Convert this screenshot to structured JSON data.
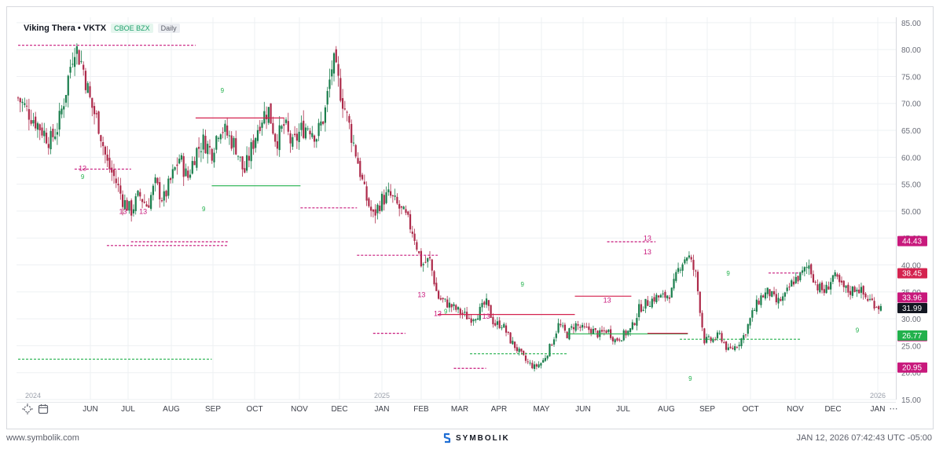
{
  "header": {
    "title": "Viking Thera • VKTX",
    "exchange": "CBOE BZX",
    "interval": "Daily"
  },
  "colors": {
    "up": "#1a7e4c",
    "down": "#ad2a4a",
    "magenta": "#c8197c",
    "green": "#22b14c",
    "red": "#d4234f",
    "grid": "#eef0f3"
  },
  "chart_data": {
    "type": "candlestick",
    "ylim": [
      15,
      86
    ],
    "y_ticks": [
      "85.00",
      "80.00",
      "75.00",
      "70.00",
      "65.00",
      "60.00",
      "55.00",
      "50.00",
      "45.00",
      "40.00",
      "35.00",
      "30.00",
      "25.00",
      "20.00",
      "15.00"
    ],
    "x_labels": [
      "2024",
      "JUN",
      "JUL",
      "AUG",
      "SEP",
      "OCT",
      "NOV",
      "DEC",
      "JAN",
      "2025",
      "FEB",
      "MAR",
      "APR",
      "MAY",
      "JUN",
      "JUL",
      "AUG",
      "SEP",
      "OCT",
      "NOV",
      "DEC",
      "JAN",
      "2026"
    ],
    "close_path": [
      [
        0,
        71
      ],
      [
        2,
        67
      ],
      [
        4,
        63
      ],
      [
        5,
        66
      ],
      [
        6,
        73
      ],
      [
        6.6,
        78
      ],
      [
        7,
        81
      ],
      [
        8,
        77
      ],
      [
        9,
        70
      ],
      [
        10,
        66
      ],
      [
        11,
        59
      ],
      [
        12,
        56
      ],
      [
        13,
        52
      ],
      [
        14,
        50
      ],
      [
        15,
        53
      ],
      [
        16,
        51
      ],
      [
        17,
        55
      ],
      [
        18,
        52
      ],
      [
        19,
        56
      ],
      [
        20,
        60
      ],
      [
        21,
        56
      ],
      [
        22,
        61
      ],
      [
        23,
        63
      ],
      [
        24,
        61
      ],
      [
        25,
        66
      ],
      [
        26,
        64
      ],
      [
        27,
        62
      ],
      [
        28,
        57
      ],
      [
        29,
        62
      ],
      [
        30,
        67
      ],
      [
        31,
        69
      ],
      [
        32,
        63
      ],
      [
        33,
        66
      ],
      [
        34,
        62
      ],
      [
        35,
        65
      ],
      [
        36,
        66
      ],
      [
        37,
        64
      ],
      [
        38,
        68
      ],
      [
        39,
        78
      ],
      [
        40,
        72
      ],
      [
        41,
        66
      ],
      [
        42,
        60
      ],
      [
        43,
        53
      ],
      [
        44,
        49
      ],
      [
        45,
        52
      ],
      [
        46,
        53
      ],
      [
        47,
        51
      ],
      [
        48,
        49
      ],
      [
        49,
        46
      ],
      [
        50,
        40
      ],
      [
        51,
        41
      ],
      [
        52,
        34
      ],
      [
        53,
        33
      ],
      [
        54,
        32
      ],
      [
        55,
        31
      ],
      [
        56,
        30
      ],
      [
        57,
        31
      ],
      [
        58,
        33
      ],
      [
        59,
        29
      ],
      [
        60,
        29
      ],
      [
        61,
        26
      ],
      [
        62,
        24
      ],
      [
        63,
        22
      ],
      [
        64,
        21
      ],
      [
        65,
        22
      ],
      [
        66,
        25
      ],
      [
        67,
        29
      ],
      [
        68,
        27
      ],
      [
        69,
        29
      ],
      [
        70,
        28
      ],
      [
        71,
        28
      ],
      [
        72,
        27
      ],
      [
        73,
        28
      ],
      [
        74,
        26
      ],
      [
        75,
        27
      ],
      [
        76,
        28
      ],
      [
        77,
        32
      ],
      [
        78,
        33
      ],
      [
        79,
        34
      ],
      [
        80,
        34
      ],
      [
        81,
        35
      ],
      [
        82,
        40
      ],
      [
        83,
        42
      ],
      [
        84,
        38
      ],
      [
        85,
        26
      ],
      [
        86,
        26
      ],
      [
        87,
        27
      ],
      [
        88,
        24
      ],
      [
        89,
        25
      ],
      [
        90,
        27
      ],
      [
        91,
        31
      ],
      [
        92,
        34
      ],
      [
        93,
        35
      ],
      [
        94,
        33
      ],
      [
        95,
        34
      ],
      [
        96,
        37
      ],
      [
        97,
        38
      ],
      [
        98,
        40
      ],
      [
        99,
        36
      ],
      [
        100,
        35
      ],
      [
        101,
        38
      ],
      [
        102,
        36
      ],
      [
        103,
        35
      ],
      [
        104,
        36
      ],
      [
        105,
        34
      ],
      [
        106,
        33
      ],
      [
        107,
        32
      ]
    ],
    "levels": [
      {
        "type": "dashed",
        "color": "magenta",
        "y": 80.8,
        "x0": 0,
        "x1": 22
      },
      {
        "type": "dashed",
        "color": "magenta",
        "y": 57.8,
        "x0": 7,
        "x1": 14
      },
      {
        "type": "dashed",
        "color": "magenta",
        "y": 44.3,
        "x0": 14,
        "x1": 26
      },
      {
        "type": "dashed",
        "color": "magenta",
        "y": 43.6,
        "x0": 11,
        "x1": 26
      },
      {
        "type": "dashed",
        "color": "green",
        "y": 22.5,
        "x0": 0,
        "x1": 24
      },
      {
        "type": "solid",
        "color": "red",
        "y": 67.3,
        "x0": 22,
        "x1": 33
      },
      {
        "type": "solid",
        "color": "green",
        "y": 54.7,
        "x0": 24,
        "x1": 35
      },
      {
        "type": "dashed",
        "color": "magenta",
        "y": 50.6,
        "x0": 35,
        "x1": 42
      },
      {
        "type": "dashed",
        "color": "magenta",
        "y": 41.8,
        "x0": 42,
        "x1": 52
      },
      {
        "type": "dashed",
        "color": "magenta",
        "y": 27.3,
        "x0": 44,
        "x1": 48
      },
      {
        "type": "solid",
        "color": "red",
        "y": 30.8,
        "x0": 52,
        "x1": 69
      },
      {
        "type": "dashed",
        "color": "green",
        "y": 23.5,
        "x0": 56,
        "x1": 68
      },
      {
        "type": "dashed",
        "color": "magenta",
        "y": 20.8,
        "x0": 54,
        "x1": 58
      },
      {
        "type": "dashed",
        "color": "magenta",
        "y": 44.3,
        "x0": 73,
        "x1": 79
      },
      {
        "type": "solid",
        "color": "red",
        "y": 34.2,
        "x0": 69,
        "x1": 76
      },
      {
        "type": "solid",
        "color": "green",
        "y": 27.2,
        "x0": 68,
        "x1": 83
      },
      {
        "type": "solid",
        "color": "red",
        "y": 27.3,
        "x0": 78,
        "x1": 83
      },
      {
        "type": "dashed",
        "color": "green",
        "y": 26.2,
        "x0": 82,
        "x1": 97
      },
      {
        "type": "dashed",
        "color": "magenta",
        "y": 38.5,
        "x0": 93,
        "x1": 97
      }
    ],
    "price_tags": [
      {
        "label": "44.43",
        "y": 44.43,
        "color": "#c8197c"
      },
      {
        "label": "38.45",
        "y": 38.45,
        "color": "#d4234f"
      },
      {
        "label": "33.96",
        "y": 33.96,
        "color": "#c8197c"
      },
      {
        "label": "31.99",
        "y": 31.99,
        "color": "#131722"
      },
      {
        "label": "26.77",
        "y": 26.77,
        "color": "#c8197c"
      },
      {
        "label": "26.77",
        "y": 26.9,
        "color": "#22b14c"
      },
      {
        "label": "20.95",
        "y": 20.95,
        "color": "#c8197c"
      }
    ],
    "markers": [
      {
        "t": "13",
        "x": 8,
        "y": 57.5,
        "color": "magenta"
      },
      {
        "t": "13",
        "x": 13,
        "y": 49.5,
        "color": "magenta"
      },
      {
        "t": "13",
        "x": 15.5,
        "y": 49.5,
        "color": "magenta"
      },
      {
        "t": "9",
        "x": 8,
        "y": 56,
        "color": "green"
      },
      {
        "t": "9",
        "x": 23,
        "y": 50,
        "color": "green"
      },
      {
        "t": "9",
        "x": 25.3,
        "y": 72,
        "color": "green"
      },
      {
        "t": "13",
        "x": 50,
        "y": 34,
        "color": "magenta"
      },
      {
        "t": "13",
        "x": 52,
        "y": 30.5,
        "color": "magenta"
      },
      {
        "t": "9",
        "x": 53,
        "y": 31,
        "color": "green"
      },
      {
        "t": "9",
        "x": 62.5,
        "y": 36,
        "color": "green"
      },
      {
        "t": "13",
        "x": 58,
        "y": 30,
        "color": "magenta"
      },
      {
        "t": "13",
        "x": 73,
        "y": 33,
        "color": "magenta"
      },
      {
        "t": "13",
        "x": 78,
        "y": 44.5,
        "color": "magenta"
      },
      {
        "t": "13",
        "x": 78,
        "y": 42,
        "color": "magenta"
      },
      {
        "t": "9",
        "x": 83.3,
        "y": 18.5,
        "color": "green"
      },
      {
        "t": "9",
        "x": 88,
        "y": 38,
        "color": "green"
      },
      {
        "t": "9",
        "x": 104,
        "y": 27.5,
        "color": "green"
      }
    ]
  },
  "toolbar": {
    "crosshair_icon": "crosshair-icon",
    "calendar_icon": "calendar-icon",
    "more_label": "⋯"
  },
  "footer": {
    "site": "www.symbolik.com",
    "brand": "SYMBOLIK",
    "timestamp": "JAN 12, 2026 07:42:43 UTC -05:00"
  }
}
